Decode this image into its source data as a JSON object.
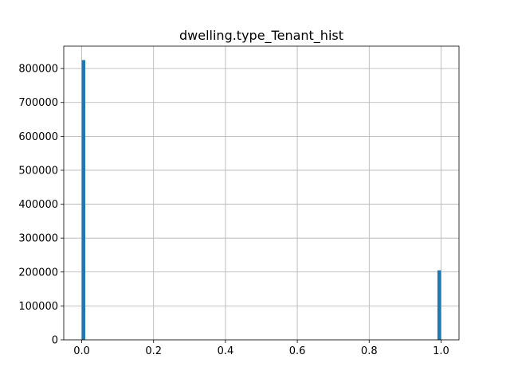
{
  "chart_data": {
    "type": "bar",
    "title": "dwelling.type_Tenant_hist",
    "xlabel": "",
    "ylabel": "",
    "xlim": [
      -0.05,
      1.05
    ],
    "ylim": [
      0,
      866000
    ],
    "grid": true,
    "bins": 100,
    "bars": [
      {
        "x0": 0.0,
        "x1": 0.01,
        "value": 825000
      },
      {
        "x0": 0.99,
        "x1": 1.0,
        "value": 205000
      }
    ],
    "x_ticks": [
      0.0,
      0.2,
      0.4,
      0.6,
      0.8,
      1.0
    ],
    "x_tick_labels": [
      "0.0",
      "0.2",
      "0.4",
      "0.6",
      "0.8",
      "1.0"
    ],
    "y_ticks": [
      0,
      100000,
      200000,
      300000,
      400000,
      500000,
      600000,
      700000,
      800000
    ],
    "y_tick_labels": [
      "0",
      "100000",
      "200000",
      "300000",
      "400000",
      "500000",
      "600000",
      "700000",
      "800000"
    ],
    "bar_color": "#1f77b4"
  }
}
